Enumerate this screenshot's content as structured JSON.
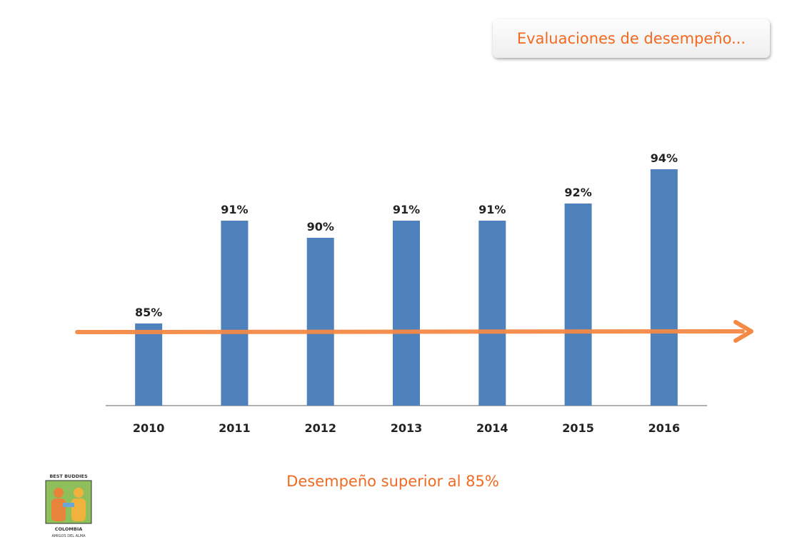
{
  "header": {
    "title": "Evaluaciones de desempeño..."
  },
  "footer": {
    "caption": "Desempeño superior al 85%",
    "logo_text": [
      "BEST BUDDIES",
      "COLOMBIA",
      "AMIGOS DEL ALMA"
    ]
  },
  "colors": {
    "bar": "#4f81bd",
    "accent": "#f48a46",
    "title": "#f26a21"
  },
  "chart_data": {
    "type": "bar",
    "categories": [
      "2010",
      "2011",
      "2012",
      "2013",
      "2014",
      "2015",
      "2016"
    ],
    "values": [
      85,
      91,
      90,
      91,
      91,
      92,
      94
    ],
    "data_labels": [
      "85%",
      "91%",
      "90%",
      "91%",
      "91%",
      "92%",
      "94%"
    ],
    "reference_line": {
      "value": 85,
      "style": "arrow"
    },
    "title": "",
    "xlabel": "",
    "ylabel": "",
    "ylim": [
      80,
      95
    ],
    "grid": false,
    "legend": "none"
  }
}
